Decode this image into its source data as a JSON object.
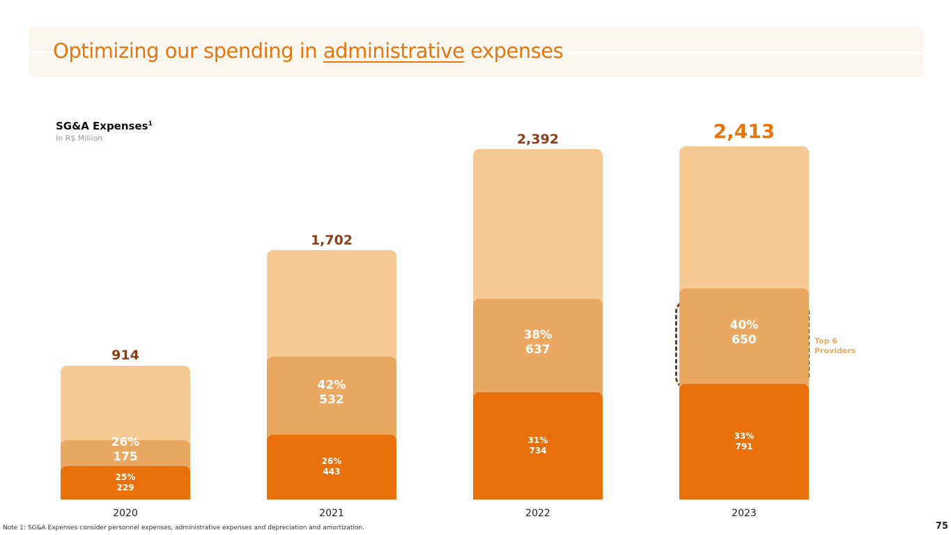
{
  "header": {
    "title_before": "Optimizing our spending in ",
    "title_highlight": "administrative",
    "title_after": " expenses"
  },
  "chart_data": {
    "type": "bar",
    "stacked": true,
    "title": "SG&A Expenses",
    "title_superscript": "1",
    "subtitle": "In R$ Million",
    "categories": [
      "2020",
      "2021",
      "2022",
      "2023"
    ],
    "totals": [
      "914",
      "1,702",
      "2,392",
      "2,413"
    ],
    "total_values": [
      914,
      1702,
      2392,
      2413
    ],
    "series": [
      {
        "values": [
          229,
          443,
          734,
          791
        ],
        "labels": [
          "229",
          "443",
          "734",
          "791"
        ],
        "pct_labels": [
          "25%",
          "26%",
          "31%",
          "33%"
        ],
        "color": "#e8700a"
      },
      {
        "values": [
          175,
          532,
          637,
          650
        ],
        "labels": [
          "175",
          "532",
          "637",
          "650"
        ],
        "pct_labels": [
          "26%",
          "42%",
          "38%",
          "40%"
        ],
        "color": "#eba862"
      },
      {
        "values": [
          510,
          727,
          1021,
          972
        ],
        "color": "#f7c995"
      }
    ],
    "highlight_category": "2023",
    "callout": {
      "category": "2023",
      "series_index": 1,
      "text_line1": "Top 6",
      "text_line2": "Providers",
      "color": "#f0a95d"
    }
  },
  "footer": {
    "note": "Note 1: SG&A Expenses consider personnel expenses, administrative expenses and depreciation and amortization.",
    "page_number": "75"
  },
  "colors": {
    "accent": "#e8760f",
    "total_label": "#8b3e18",
    "title_band": "#fcf7ee",
    "callout_border": "#6b3a17"
  }
}
